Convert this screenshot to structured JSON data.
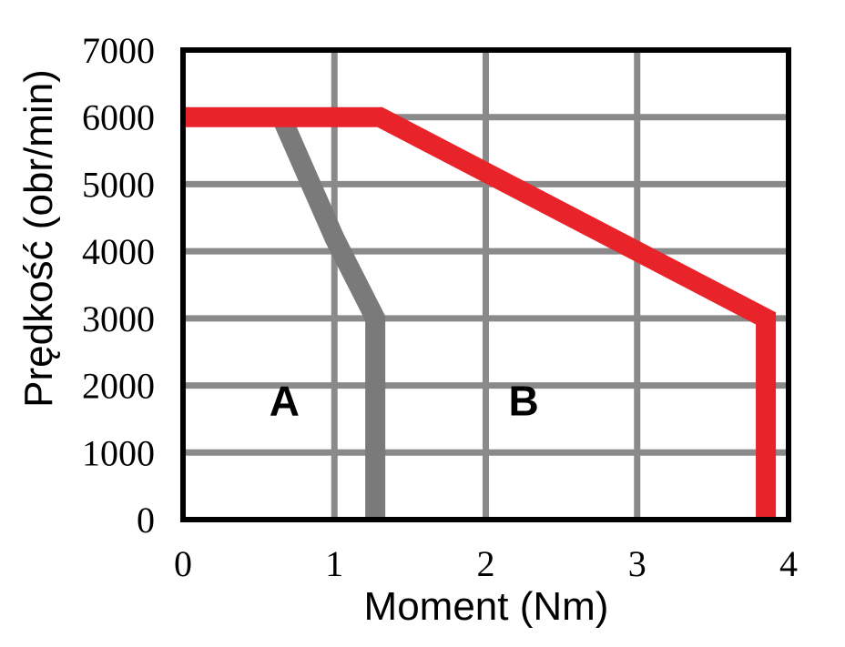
{
  "chart_data": {
    "type": "line",
    "xlabel": "Moment (Nm)",
    "ylabel": "Prędkość (obr/min)",
    "xlim": [
      0,
      4
    ],
    "ylim": [
      0,
      7000
    ],
    "x_ticks": [
      "0",
      "1",
      "2",
      "3",
      "4"
    ],
    "y_ticks": [
      "0",
      "1000",
      "2000",
      "3000",
      "4000",
      "5000",
      "6000",
      "7000"
    ],
    "grid": true,
    "series": [
      {
        "color": "#7a7a7b",
        "points": [
          [
            0.65,
            6000
          ],
          [
            1.0,
            4200
          ],
          [
            1.27,
            3000
          ],
          [
            1.27,
            0
          ]
        ]
      },
      {
        "color": "#e8232a",
        "points": [
          [
            0,
            6000
          ],
          [
            1.3,
            6000
          ],
          [
            3.85,
            3000
          ],
          [
            3.85,
            0
          ]
        ]
      }
    ],
    "annotations": [
      {
        "text": "A",
        "x": 0.67,
        "y": 1550
      },
      {
        "text": "B",
        "x": 2.25,
        "y": 1550
      }
    ]
  }
}
